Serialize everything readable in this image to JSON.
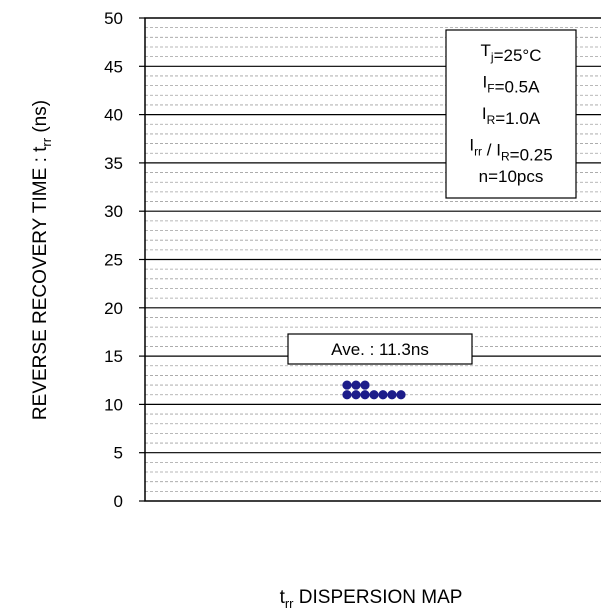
{
  "chart_data": {
    "type": "scatter",
    "ylim": [
      0,
      50
    ],
    "yticks": [
      0,
      5,
      10,
      15,
      20,
      25,
      30,
      35,
      40,
      45,
      50
    ],
    "ylabel": {
      "main": "REVERSE RECOVERY TIME : t",
      "sub": "rr",
      "suffix": " (ns)"
    },
    "xlabel": {
      "sub": "rr",
      "main": " DISPERSION MAP"
    },
    "grid": {
      "major_step": 5,
      "minor_step": 1
    },
    "annotation": "Ave. : 11.3ns",
    "conditions": [
      {
        "pre": "T",
        "sub": "j",
        "post": "=25°C"
      },
      {
        "pre": "I",
        "sub": "F",
        "post": "=0.5A"
      },
      {
        "pre": "I",
        "sub": "R",
        "post": "=1.0A"
      },
      {
        "pre": "I",
        "sub": "rr",
        "post": " / I",
        "sub2": "R",
        "post2": "=0.25"
      },
      {
        "pre": "",
        "sub": "",
        "post": "n=10pcs"
      }
    ],
    "points": [
      {
        "col": 0,
        "y": 12
      },
      {
        "col": 1,
        "y": 12
      },
      {
        "col": 2,
        "y": 12
      },
      {
        "col": 0,
        "y": 11
      },
      {
        "col": 1,
        "y": 11
      },
      {
        "col": 2,
        "y": 11
      },
      {
        "col": 3,
        "y": 11
      },
      {
        "col": 4,
        "y": 11
      },
      {
        "col": 5,
        "y": 11
      },
      {
        "col": 6,
        "y": 11
      }
    ],
    "point_color": "#1c1c8a"
  }
}
